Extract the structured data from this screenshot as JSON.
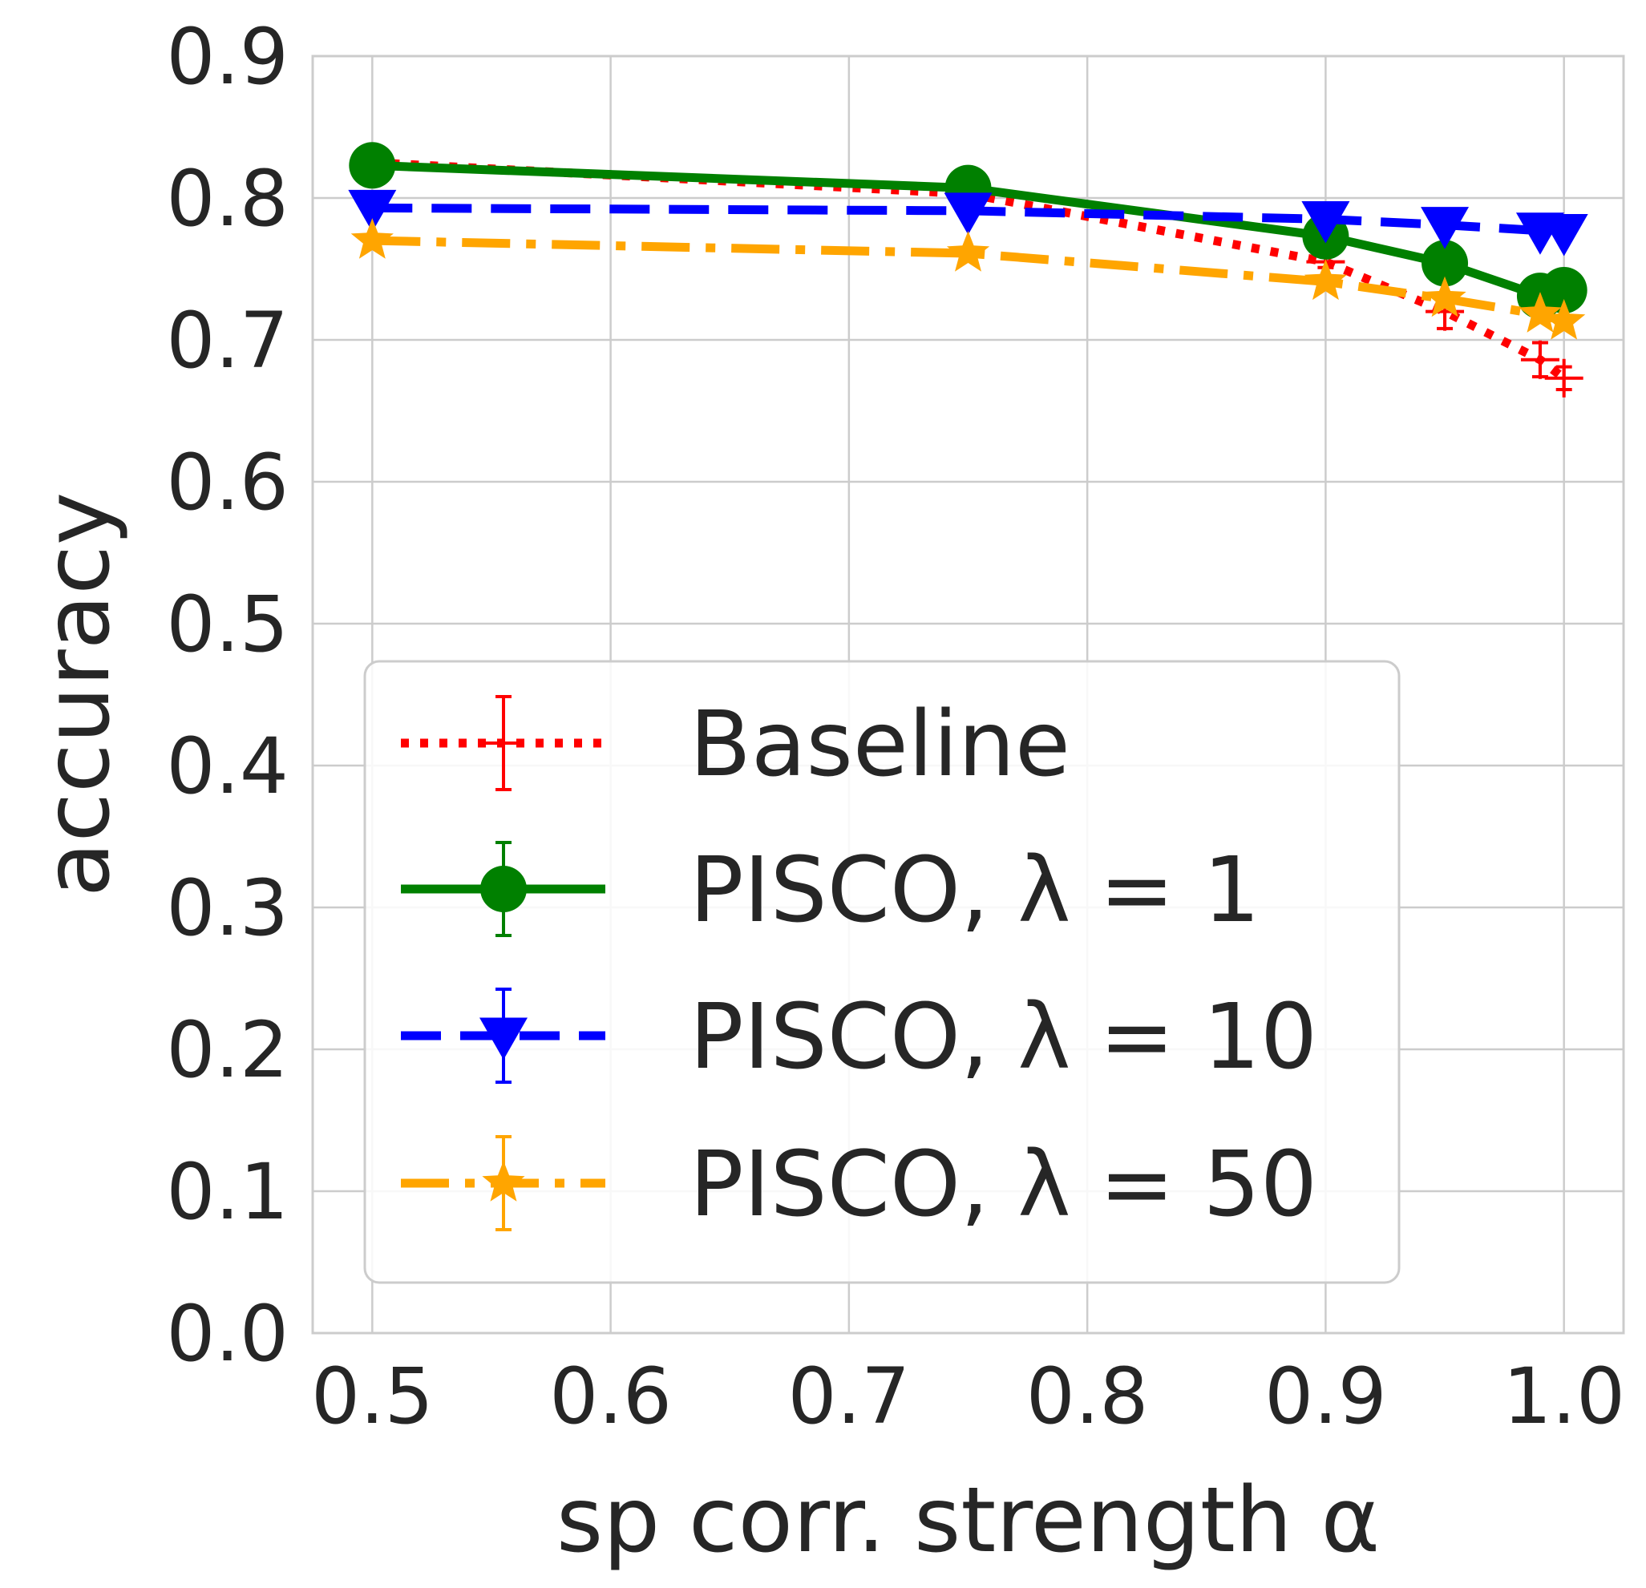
{
  "chart_data": {
    "type": "line",
    "title": "",
    "xlabel": "sp corr. strength α",
    "ylabel": "accuracy",
    "xlim": [
      0.475,
      1.025
    ],
    "ylim": [
      0.0,
      0.9
    ],
    "xticks": [
      "0.5",
      "0.6",
      "0.7",
      "0.8",
      "0.9",
      "1.0"
    ],
    "yticks": [
      "0.0",
      "0.1",
      "0.2",
      "0.3",
      "0.4",
      "0.5",
      "0.6",
      "0.7",
      "0.8",
      "0.9"
    ],
    "grid": true,
    "legend_position": "lower-center",
    "x": [
      0.5,
      0.75,
      0.9,
      0.95,
      0.99,
      1.0
    ],
    "series": [
      {
        "name": "Baseline",
        "color": "#ff0000",
        "linestyle": "dotted",
        "marker": "plus",
        "values": [
          0.825,
          0.803,
          0.755,
          0.72,
          0.686,
          0.673
        ],
        "errors": [
          0.003,
          0.003,
          0.004,
          0.012,
          0.012,
          0.008
        ]
      },
      {
        "name": "PISCO, λ = 1",
        "color": "#008000",
        "linestyle": "solid",
        "marker": "circle",
        "values": [
          0.823,
          0.807,
          0.773,
          0.754,
          0.731,
          0.735
        ],
        "errors": [
          0.003,
          0.003,
          0.004,
          0.004,
          0.004,
          0.004
        ]
      },
      {
        "name": "PISCO, λ = 10",
        "color": "#0000ff",
        "linestyle": "dashed",
        "marker": "triangle-down",
        "values": [
          0.793,
          0.791,
          0.785,
          0.781,
          0.777,
          0.776
        ],
        "errors": [
          0.003,
          0.003,
          0.003,
          0.003,
          0.003,
          0.003
        ]
      },
      {
        "name": "PISCO, λ = 50",
        "color": "#ffa500",
        "linestyle": "dashdot",
        "marker": "star",
        "values": [
          0.77,
          0.761,
          0.741,
          0.729,
          0.718,
          0.713
        ],
        "errors": [
          0.003,
          0.003,
          0.004,
          0.004,
          0.004,
          0.004
        ]
      }
    ]
  }
}
